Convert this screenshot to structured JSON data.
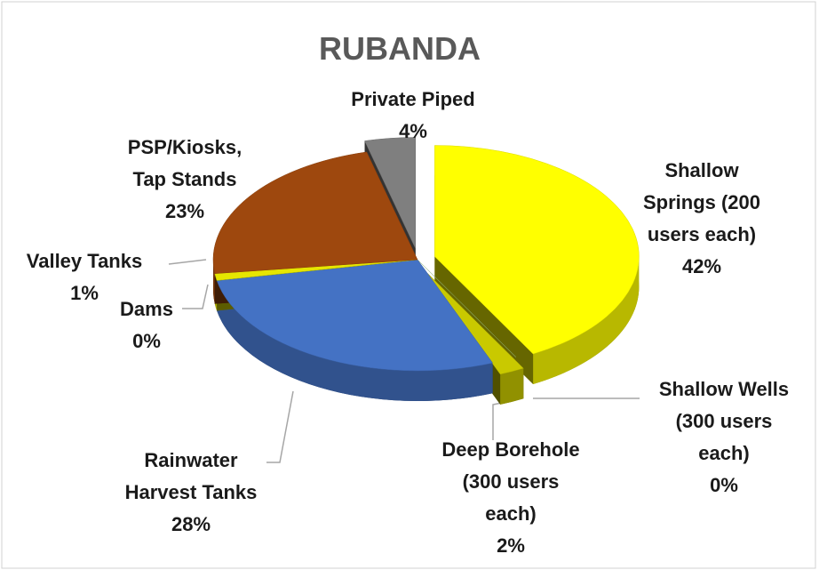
{
  "chart_data": {
    "type": "pie3d",
    "title": "RUBANDA",
    "categories": [
      "Shallow Springs (200 users each)",
      "Shallow Wells (300 users each)",
      "Deep Borehole (300 users each)",
      "Rainwater Harvest Tanks",
      "Dams",
      "Valley Tanks",
      "PSP/Kiosks, Tap Stands",
      "Private Piped"
    ],
    "values": [
      42,
      0,
      2,
      28,
      0,
      1,
      23,
      4
    ],
    "value_labels": [
      "42%",
      "0%",
      "2%",
      "28%",
      "0%",
      "1%",
      "23%",
      "4%"
    ],
    "colors": [
      "#ffff00",
      "#a9d18e",
      "#c9c900",
      "#4472c4",
      "#548235",
      "#e6e600",
      "#9e480e",
      "#7f7f7f"
    ]
  }
}
